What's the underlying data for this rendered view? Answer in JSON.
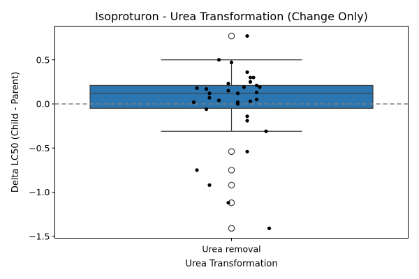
{
  "chart_data": {
    "type": "box",
    "title": "Isoproturon - Urea Transformation (Change Only)",
    "xlabel": "Urea Transformation",
    "ylabel": "Delta LC50 (Child - Parent)",
    "categories": [
      "Urea removal"
    ],
    "ylim": [
      -1.53,
      0.88
    ],
    "yticks": [
      0.5,
      0.0,
      -0.5,
      -1.0,
      -1.5
    ],
    "ytick_labels": [
      "0.5",
      "0.0",
      "−0.5",
      "−1.0",
      "−1.5"
    ],
    "reference_line": 0.0,
    "box": {
      "q1": -0.05,
      "median": 0.12,
      "q3": 0.21,
      "whisker_low": -0.31,
      "whisker_high": 0.5,
      "outliers": [
        0.77,
        -0.54,
        -0.75,
        -0.92,
        -1.12,
        -1.41
      ]
    },
    "points": [
      {
        "x": 0.05,
        "y": 0.77
      },
      {
        "x": -0.04,
        "y": 0.5
      },
      {
        "x": 0.0,
        "y": 0.47
      },
      {
        "x": 0.05,
        "y": 0.36
      },
      {
        "x": 0.07,
        "y": 0.3
      },
      {
        "x": 0.06,
        "y": 0.3
      },
      {
        "x": 0.06,
        "y": 0.25
      },
      {
        "x": -0.01,
        "y": 0.23
      },
      {
        "x": 0.08,
        "y": 0.21
      },
      {
        "x": 0.09,
        "y": 0.19
      },
      {
        "x": 0.04,
        "y": 0.19
      },
      {
        "x": -0.11,
        "y": 0.18
      },
      {
        "x": -0.08,
        "y": 0.17
      },
      {
        "x": -0.01,
        "y": 0.15
      },
      {
        "x": 0.08,
        "y": 0.13
      },
      {
        "x": -0.07,
        "y": 0.12
      },
      {
        "x": 0.02,
        "y": 0.12
      },
      {
        "x": -0.07,
        "y": 0.07
      },
      {
        "x": 0.08,
        "y": 0.05
      },
      {
        "x": -0.04,
        "y": 0.04
      },
      {
        "x": 0.06,
        "y": 0.03
      },
      {
        "x": -0.12,
        "y": 0.02
      },
      {
        "x": 0.02,
        "y": 0.02
      },
      {
        "x": 0.02,
        "y": 0.0
      },
      {
        "x": -0.08,
        "y": -0.06
      },
      {
        "x": 0.05,
        "y": -0.14
      },
      {
        "x": 0.05,
        "y": -0.19
      },
      {
        "x": 0.11,
        "y": -0.31
      },
      {
        "x": 0.05,
        "y": -0.54
      },
      {
        "x": -0.11,
        "y": -0.75
      },
      {
        "x": -0.07,
        "y": -0.92
      },
      {
        "x": -0.01,
        "y": -1.12
      },
      {
        "x": 0.12,
        "y": -1.41
      }
    ],
    "grid": false,
    "colors": {
      "box_fill": "#2b75b0",
      "lines": "#3d3d3d",
      "points": "#000000",
      "reference_line": "#808080"
    }
  }
}
